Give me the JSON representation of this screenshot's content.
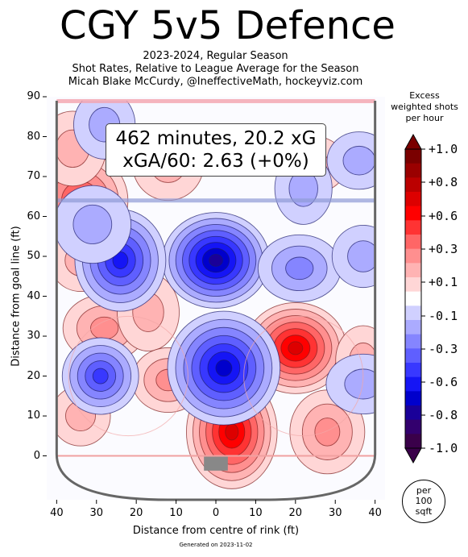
{
  "title": "CGY 5v5 Defence",
  "subtitle_lines": [
    "2023-2024, Regular Season",
    "Shot Rates, Relative to League Average for the Season",
    "Micah Blake McCurdy, @IneffectiveMath, hockeyviz.com"
  ],
  "stats_box": {
    "line1": "462 minutes, 20.2 xG",
    "line2": "xGA/60: 2.63 (+0%)"
  },
  "footer": "Generated on 2023-11-02",
  "colorbar": {
    "title_lines": [
      "Excess",
      "weighted shots",
      "per hour"
    ],
    "tick_labels": [
      "+1.0",
      "+0.8",
      "+0.6",
      "+0.3",
      "+0.1",
      "-0.1",
      "-0.3",
      "-0.6",
      "-0.8",
      "-1.0"
    ],
    "tick_values": [
      1.0,
      0.8,
      0.6,
      0.3,
      0.1,
      -0.1,
      -0.3,
      -0.6,
      -0.8,
      -1.0
    ],
    "colors": [
      "#7a0000",
      "#9a0000",
      "#bb0000",
      "#dd0000",
      "#ff0000",
      "#ff3333",
      "#ff6666",
      "#ff8f8f",
      "#ffb3b3",
      "#ffd6d6",
      "#ffffff",
      "#d0d0ff",
      "#ababff",
      "#8585ff",
      "#5f5fff",
      "#3838ff",
      "#1515f5",
      "#0000cc",
      "#1a0099",
      "#33006e",
      "#3a004a"
    ]
  },
  "unit_label_lines": [
    "per",
    "100",
    "sqft"
  ],
  "chart_data": {
    "type": "heatmap",
    "xlabel": "Distance from centre of rink (ft)",
    "ylabel": "Distance from goal line (ft)",
    "xlim": [
      -42.5,
      42.5
    ],
    "ylim": [
      -11,
      90
    ],
    "xticks": [
      -40,
      -30,
      -20,
      -10,
      0,
      10,
      20,
      30,
      40
    ],
    "xtick_labels": [
      "40",
      "30",
      "20",
      "10",
      "0",
      "10",
      "20",
      "30",
      "40"
    ],
    "yticks": [
      0,
      10,
      20,
      30,
      40,
      50,
      60,
      70,
      80,
      90
    ],
    "ytick_labels": [
      "0",
      "10",
      "20",
      "30",
      "40",
      "50",
      "60",
      "70",
      "80",
      "90"
    ],
    "blue_line_y": 64,
    "red_line_y": 89,
    "hotspots": [
      {
        "x": 4,
        "y": 6,
        "value": 0.9
      },
      {
        "x": 20,
        "y": 27,
        "value": 0.9
      },
      {
        "x": -34,
        "y": 64,
        "value": 0.6
      },
      {
        "x": -34,
        "y": 49,
        "value": 0.3
      },
      {
        "x": -36,
        "y": 77,
        "value": 0.25
      },
      {
        "x": -28,
        "y": 32,
        "value": 0.4
      },
      {
        "x": -17,
        "y": 36,
        "value": 0.3
      },
      {
        "x": -12,
        "y": 19,
        "value": 0.35
      },
      {
        "x": -12,
        "y": 73,
        "value": 0.2
      },
      {
        "x": -34,
        "y": 10,
        "value": 0.25
      },
      {
        "x": 28,
        "y": 6,
        "value": 0.4
      },
      {
        "x": 24,
        "y": 73,
        "value": 0.2
      },
      {
        "x": 37,
        "y": 24,
        "value": 0.15
      },
      {
        "x": 0,
        "y": 49,
        "value": -1.0
      },
      {
        "x": 2,
        "y": 22,
        "value": -0.9
      },
      {
        "x": -29,
        "y": 20,
        "value": -0.6
      },
      {
        "x": -24,
        "y": 49,
        "value": -0.7
      },
      {
        "x": 21,
        "y": 47,
        "value": -0.4
      },
      {
        "x": 22,
        "y": 67,
        "value": -0.2
      },
      {
        "x": 36,
        "y": 74,
        "value": -0.2
      },
      {
        "x": -31,
        "y": 58,
        "value": -0.3
      },
      {
        "x": 37,
        "y": 50,
        "value": -0.3
      },
      {
        "x": -28,
        "y": 83,
        "value": -0.15
      },
      {
        "x": 37,
        "y": 18,
        "value": -0.25
      }
    ]
  }
}
